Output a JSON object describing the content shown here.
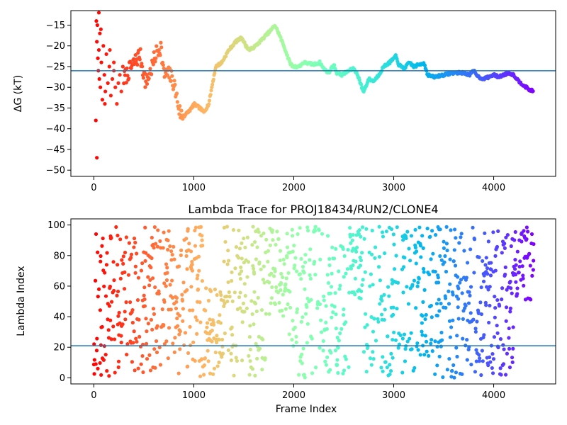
{
  "chart_data": [
    {
      "type": "scatter",
      "title": "",
      "xlabel": "",
      "ylabel": "ΔG (kT)",
      "xlim": [
        -230,
        4620
      ],
      "ylim": [
        -51.5,
        -11.5
      ],
      "xticks": [
        0,
        1000,
        2000,
        3000,
        4000
      ],
      "yticks": [
        -50,
        -45,
        -40,
        -35,
        -30,
        -25,
        -20,
        -15
      ],
      "reference_line": -26,
      "reference_line_color": "#1f77b4",
      "colormap": "rainbow (early frames red, late frames violet)",
      "path": [
        [
          300,
          -28
        ],
        [
          380,
          -25
        ],
        [
          460,
          -22
        ],
        [
          520,
          -29
        ],
        [
          570,
          -26
        ],
        [
          620,
          -22
        ],
        [
          670,
          -20
        ],
        [
          700,
          -27
        ],
        [
          760,
          -27
        ],
        [
          800,
          -29
        ],
        [
          860,
          -36
        ],
        [
          900,
          -37
        ],
        [
          980,
          -35
        ],
        [
          1000,
          -34
        ],
        [
          1060,
          -35
        ],
        [
          1100,
          -36
        ],
        [
          1150,
          -34
        ],
        [
          1180,
          -30
        ],
        [
          1220,
          -25
        ],
        [
          1280,
          -24
        ],
        [
          1350,
          -21
        ],
        [
          1420,
          -19
        ],
        [
          1480,
          -18
        ],
        [
          1520,
          -20
        ],
        [
          1560,
          -21
        ],
        [
          1620,
          -20
        ],
        [
          1700,
          -18
        ],
        [
          1780,
          -16
        ],
        [
          1810,
          -15
        ],
        [
          1850,
          -17
        ],
        [
          1900,
          -20
        ],
        [
          1960,
          -24
        ],
        [
          1990,
          -25
        ],
        [
          2050,
          -25
        ],
        [
          2100,
          -24
        ],
        [
          2200,
          -24.5
        ],
        [
          2260,
          -24
        ],
        [
          2300,
          -25.5
        ],
        [
          2350,
          -26.5
        ],
        [
          2400,
          -24.5
        ],
        [
          2430,
          -26.5
        ],
        [
          2480,
          -27
        ],
        [
          2550,
          -26
        ],
        [
          2600,
          -25.5
        ],
        [
          2640,
          -27
        ],
        [
          2680,
          -30
        ],
        [
          2700,
          -31
        ],
        [
          2750,
          -28
        ],
        [
          2800,
          -28.5
        ],
        [
          2850,
          -27
        ],
        [
          2900,
          -25
        ],
        [
          2960,
          -24
        ],
        [
          3020,
          -22.5
        ],
        [
          3050,
          -24.5
        ],
        [
          3100,
          -25.5
        ],
        [
          3160,
          -24
        ],
        [
          3200,
          -25
        ],
        [
          3260,
          -24.5
        ],
        [
          3300,
          -24
        ],
        [
          3340,
          -27
        ],
        [
          3400,
          -27.5
        ],
        [
          3500,
          -27
        ],
        [
          3600,
          -26.5
        ],
        [
          3700,
          -26.5
        ],
        [
          3760,
          -27
        ],
        [
          3800,
          -26
        ],
        [
          3850,
          -27.5
        ],
        [
          3900,
          -28
        ],
        [
          3950,
          -27.5
        ],
        [
          4000,
          -27
        ],
        [
          4050,
          -27.5
        ],
        [
          4100,
          -27
        ],
        [
          4150,
          -26.5
        ],
        [
          4200,
          -27
        ],
        [
          4250,
          -28.5
        ],
        [
          4300,
          -29.5
        ],
        [
          4350,
          -30.5
        ],
        [
          4400,
          -31
        ]
      ],
      "early_scatter": [
        [
          20,
          -38
        ],
        [
          30,
          -47
        ],
        [
          25,
          -14
        ],
        [
          35,
          -15
        ],
        [
          30,
          -19
        ],
        [
          40,
          -23
        ],
        [
          50,
          -21
        ],
        [
          60,
          -17
        ],
        [
          45,
          -26
        ],
        [
          55,
          -28
        ],
        [
          65,
          -30
        ],
        [
          75,
          -24
        ],
        [
          85,
          -33
        ],
        [
          95,
          -20
        ],
        [
          105,
          -27
        ],
        [
          115,
          -31
        ],
        [
          125,
          -22
        ],
        [
          140,
          -29
        ],
        [
          155,
          -25
        ],
        [
          170,
          -32
        ],
        [
          185,
          -28
        ],
        [
          200,
          -26
        ],
        [
          215,
          -30
        ],
        [
          230,
          -34
        ],
        [
          245,
          -29
        ],
        [
          260,
          -27
        ],
        [
          275,
          -31
        ],
        [
          290,
          -25
        ],
        [
          50,
          -12
        ],
        [
          70,
          -16
        ],
        [
          110,
          -34
        ],
        [
          160,
          -21
        ],
        [
          200,
          -24
        ]
      ]
    },
    {
      "type": "scatter",
      "title": "Lambda Trace for PROJ18434/RUN2/CLONE4",
      "xlabel": "Frame Index",
      "ylabel": "Lambda Index",
      "xlim": [
        -230,
        4620
      ],
      "ylim": [
        -4,
        104
      ],
      "xticks": [
        0,
        1000,
        2000,
        3000,
        4000
      ],
      "yticks": [
        0,
        20,
        40,
        60,
        80,
        100
      ],
      "reference_line": 21,
      "reference_line_color": "#1f77b4",
      "x_max": 4400,
      "y_range": [
        0,
        99
      ],
      "colormap": "rainbow (early frames red, late frames violet)"
    }
  ]
}
